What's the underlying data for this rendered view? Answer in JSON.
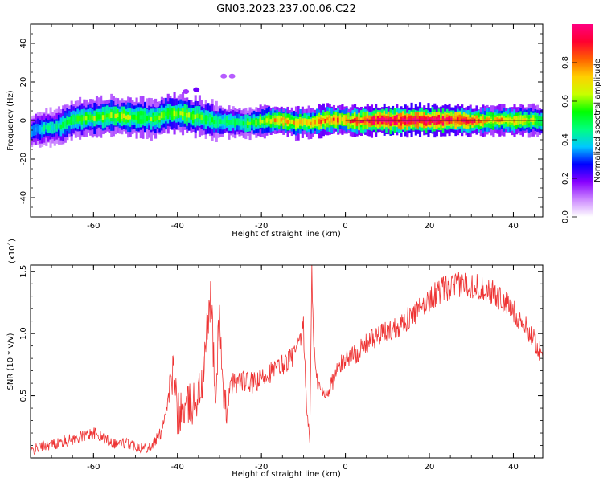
{
  "chart_data": [
    {
      "type": "heatmap",
      "title": "GN03.2023.237.00.06.C22",
      "xlabel": "Height of straight line (km)",
      "ylabel": "Frequency (Hz)",
      "xlim": [
        -75,
        47
      ],
      "ylim": [
        -50,
        50
      ],
      "xticks": [
        -60,
        -40,
        -20,
        0,
        20,
        40
      ],
      "yticks": [
        40,
        20,
        0,
        -20,
        -40
      ],
      "colorbar": {
        "label": "Normalized spectral amplitude",
        "range": [
          0.0,
          1.0
        ],
        "ticks": [
          "0.0",
          "0.2",
          "0.4",
          "0.6",
          "0.8"
        ],
        "colors": [
          "#ffffff",
          "#cc88ff",
          "#8800ff",
          "#0000ff",
          "#00c8ff",
          "#00ff80",
          "#00ff00",
          "#c8ff00",
          "#ffd000",
          "#ff6000",
          "#ff0030",
          "#ff0080"
        ]
      },
      "ridge": {
        "x": [
          -75,
          -72,
          -68,
          -65,
          -62,
          -58,
          -55,
          -52,
          -48,
          -45,
          -42,
          -38,
          -35,
          -32,
          -28,
          -25,
          -22,
          -18,
          -15,
          -12,
          -8,
          -5,
          -2,
          0,
          5,
          10,
          15,
          20,
          25,
          30,
          35,
          40,
          45,
          47
        ],
        "freq": [
          -6,
          -4,
          -3,
          0,
          1,
          2,
          2.5,
          2,
          1.5,
          1,
          4,
          3,
          2,
          0,
          -1,
          -1,
          -1,
          0,
          0,
          -1,
          -1,
          0,
          0.5,
          0,
          0,
          0,
          0,
          0,
          0,
          0,
          0,
          0,
          0,
          0
        ],
        "amplitude": [
          0.35,
          0.4,
          0.45,
          0.55,
          0.55,
          0.6,
          0.6,
          0.6,
          0.55,
          0.55,
          0.6,
          0.6,
          0.55,
          0.5,
          0.5,
          0.5,
          0.55,
          0.7,
          0.75,
          0.7,
          0.7,
          0.85,
          0.8,
          0.75,
          0.95,
          1.0,
          1.0,
          1.0,
          0.95,
          0.85,
          0.7,
          0.75,
          0.6,
          0.55
        ]
      },
      "blobs": [
        {
          "x": -35.5,
          "freq": 16,
          "amplitude": 0.2
        },
        {
          "x": -38,
          "freq": 15,
          "amplitude": 0.15
        },
        {
          "x": -29,
          "freq": 23,
          "amplitude": 0.12
        },
        {
          "x": -27,
          "freq": 23,
          "amplitude": 0.12
        },
        {
          "x": -45,
          "freq": 8,
          "amplitude": 0.12
        }
      ]
    },
    {
      "type": "line",
      "xlabel": "Height of straight line (km)",
      "ylabel": "SNR (10 * v/v)",
      "yscale_label": "(x10",
      "yscale_exp": "4",
      "yscale_close": ")",
      "xlim": [
        -75,
        47
      ],
      "ylim": [
        0,
        1.55
      ],
      "xticks": [
        -60,
        -40,
        -20,
        0,
        20,
        40
      ],
      "yticks": [
        0.5,
        1.0,
        1.5
      ],
      "ytick_labels": [
        "0.5",
        "1.0",
        "1.5"
      ],
      "series": [
        {
          "color": "#ee3333",
          "x": [
            -75,
            -72,
            -68,
            -65,
            -62,
            -60,
            -57,
            -55,
            -52,
            -50,
            -48,
            -46,
            -44,
            -42,
            -41,
            -40,
            -38,
            -36,
            -34,
            -33,
            -32,
            -31,
            -30,
            -29,
            -27,
            -25,
            -23,
            -21,
            -19,
            -17,
            -15,
            -13,
            -12,
            -11,
            -10,
            -9.5,
            -9,
            -8.5,
            -8,
            -7.5,
            -7,
            -6,
            -5,
            -4,
            -3,
            -2,
            0,
            3,
            6,
            9,
            12,
            15,
            18,
            20,
            23,
            26,
            29,
            31,
            34,
            37,
            40,
            43,
            45,
            47
          ],
          "y": [
            0.05,
            0.1,
            0.12,
            0.15,
            0.18,
            0.2,
            0.15,
            0.12,
            0.12,
            0.1,
            0.08,
            0.1,
            0.2,
            0.5,
            0.7,
            0.35,
            0.4,
            0.45,
            0.6,
            1.0,
            1.35,
            0.4,
            1.2,
            0.35,
            0.6,
            0.62,
            0.6,
            0.6,
            0.68,
            0.7,
            0.75,
            0.8,
            0.85,
            0.9,
            1.05,
            0.6,
            0.3,
            0.15,
            1.5,
            0.9,
            0.65,
            0.55,
            0.5,
            0.55,
            0.62,
            0.7,
            0.8,
            0.85,
            0.95,
            1.0,
            1.05,
            1.12,
            1.2,
            1.28,
            1.35,
            1.38,
            1.4,
            1.38,
            1.35,
            1.28,
            1.18,
            1.05,
            0.95,
            0.8
          ]
        }
      ]
    }
  ]
}
